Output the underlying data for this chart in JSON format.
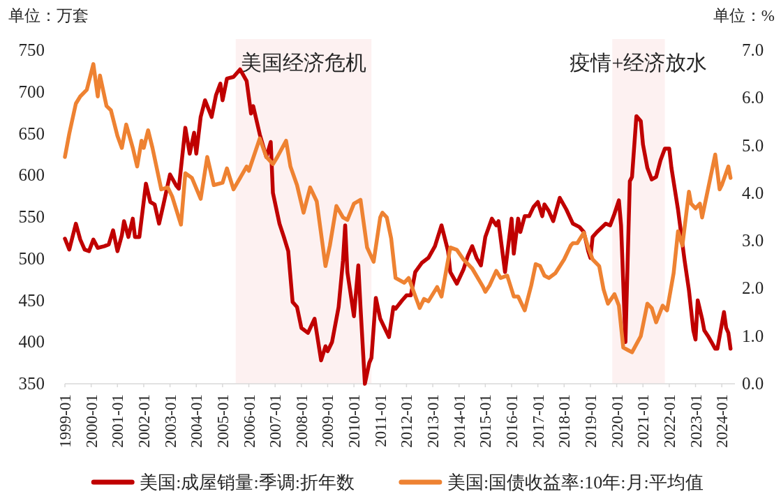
{
  "chart_data": {
    "type": "line",
    "ylabel": "单位：万套",
    "y2label": "单位：%",
    "xlim": [
      "1999-01",
      "2024-07"
    ],
    "xticks": [
      "1999-01",
      "2000-01",
      "2001-01",
      "2002-01",
      "2003-01",
      "2004-01",
      "2005-01",
      "2006-01",
      "2007-01",
      "2008-01",
      "2009-01",
      "2010-01",
      "2011-01",
      "2012-01",
      "2013-01",
      "2014-01",
      "2015-01",
      "2016-01",
      "2017-01",
      "2018-01",
      "2019-01",
      "2020-01",
      "2021-01",
      "2022-01",
      "2023-01",
      "2024-01"
    ],
    "ylim": [
      350,
      750
    ],
    "yticks": [
      350,
      400,
      450,
      500,
      550,
      600,
      650,
      700,
      750
    ],
    "y2lim": [
      0,
      7
    ],
    "y2ticks": [
      {
        "value": 0,
        "label": "0.0"
      },
      {
        "value": 1,
        "label": "1.0"
      },
      {
        "value": 2,
        "label": "2.0"
      },
      {
        "value": 3,
        "label": "3.0"
      },
      {
        "value": 4,
        "label": "4.0"
      },
      {
        "value": 5,
        "label": "5.0"
      },
      {
        "value": 6,
        "label": "6.0"
      },
      {
        "value": 7,
        "label": "7.0"
      }
    ],
    "legend": "bottom",
    "line_style": "solid",
    "bands": [
      {
        "axis": "x",
        "from": "2005-07",
        "to": "2010-09",
        "label": "美国经济危机",
        "color": "#fdf1f1"
      },
      {
        "axis": "x",
        "from": "2019-11",
        "to": "2021-11",
        "label": "疫情+经济放水",
        "color": "#fdf1f1"
      }
    ],
    "series": [
      {
        "name": "美国:成屋销量:季调:折年数",
        "color": "#c00000",
        "x": [
          "1999-01",
          "1999-03",
          "1999-06",
          "1999-08",
          "1999-10",
          "1999-12",
          "2000-02",
          "2000-04",
          "2000-07",
          "2000-09",
          "2000-11",
          "2001-01",
          "2001-03",
          "2001-04",
          "2001-06",
          "2001-08",
          "2001-09",
          "2001-11",
          "2002-02",
          "2002-04",
          "2002-06",
          "2002-08",
          "2002-10",
          "2003-01",
          "2003-04",
          "2003-05",
          "2003-08",
          "2003-10",
          "2003-12",
          "2004-01",
          "2004-03",
          "2004-05",
          "2004-08",
          "2004-10",
          "2004-12",
          "2005-01",
          "2005-03",
          "2005-06",
          "2005-09",
          "2005-12",
          "2006-02",
          "2006-03",
          "2006-06",
          "2006-09",
          "2006-11",
          "2006-12",
          "2007-03",
          "2007-05",
          "2007-07",
          "2007-09",
          "2007-11",
          "2008-01",
          "2008-04",
          "2008-07",
          "2008-10",
          "2008-12",
          "2009-01",
          "2009-03",
          "2009-06",
          "2009-08",
          "2009-09",
          "2009-10",
          "2010-01",
          "2010-03",
          "2010-04",
          "2010-06",
          "2010-08",
          "2010-09",
          "2010-11",
          "2011-01",
          "2011-05",
          "2011-07",
          "2011-08",
          "2011-11",
          "2012-01",
          "2012-03",
          "2012-05",
          "2012-08",
          "2012-11",
          "2013-02",
          "2013-05",
          "2013-08",
          "2013-09",
          "2013-12",
          "2014-03",
          "2014-05",
          "2014-07",
          "2014-09",
          "2014-11",
          "2015-01",
          "2015-04",
          "2015-06",
          "2015-07",
          "2015-10",
          "2016-01",
          "2016-02",
          "2016-04",
          "2016-05",
          "2016-07",
          "2016-09",
          "2016-11",
          "2017-01",
          "2017-03",
          "2017-04",
          "2017-06",
          "2017-08",
          "2017-11",
          "2018-02",
          "2018-05",
          "2018-08",
          "2018-10",
          "2018-12",
          "2019-01",
          "2019-02",
          "2019-04",
          "2019-06",
          "2019-08",
          "2019-10",
          "2019-12",
          "2020-02",
          "2020-03",
          "2020-05",
          "2020-07",
          "2020-08",
          "2020-10",
          "2020-12",
          "2021-01",
          "2021-03",
          "2021-05",
          "2021-07",
          "2021-09",
          "2021-11",
          "2022-01",
          "2022-02",
          "2022-05",
          "2022-08",
          "2022-10",
          "2022-12",
          "2023-01",
          "2023-02",
          "2023-04",
          "2023-05",
          "2023-07",
          "2023-10",
          "2023-11",
          "2024-02",
          "2024-03",
          "2024-04",
          "2024-05"
        ],
        "values": [
          524,
          511,
          542,
          523,
          511,
          509,
          523,
          513,
          515,
          517,
          534,
          509,
          528,
          545,
          526,
          548,
          526,
          526,
          590,
          568,
          565,
          542,
          565,
          601,
          587,
          584,
          657,
          626,
          651,
          626,
          670,
          690,
          670,
          696,
          710,
          690,
          716,
          718,
          727,
          713,
          674,
          683,
          649,
          622,
          640,
          579,
          542,
          526,
          509,
          448,
          442,
          417,
          411,
          428,
          378,
          395,
          389,
          400,
          442,
          498,
          540,
          484,
          431,
          492,
          442,
          350,
          375,
          381,
          453,
          428,
          406,
          442,
          440,
          450,
          456,
          456,
          484,
          495,
          501,
          515,
          540,
          509,
          484,
          470,
          487,
          503,
          515,
          501,
          492,
          526,
          548,
          540,
          545,
          484,
          548,
          506,
          548,
          532,
          551,
          551,
          562,
          568,
          551,
          565,
          557,
          545,
          573,
          559,
          542,
          538,
          532,
          509,
          501,
          526,
          532,
          537,
          542,
          540,
          554,
          570,
          540,
          400,
          593,
          598,
          671,
          665,
          637,
          609,
          595,
          598,
          618,
          632,
          632,
          609,
          559,
          498,
          462,
          414,
          403,
          450,
          428,
          414,
          406,
          392,
          392,
          436,
          417,
          411,
          392
        ]
      },
      {
        "name": "美国:国债收益率:10年:月:平均值",
        "color": "#ee8232",
        "axis": "y2",
        "x": [
          "1999-01",
          "1999-03",
          "1999-06",
          "1999-08",
          "1999-11",
          "2000-02",
          "2000-04",
          "2000-05",
          "2000-08",
          "2000-10",
          "2001-01",
          "2001-03",
          "2001-05",
          "2001-08",
          "2001-10",
          "2001-12",
          "2002-01",
          "2002-03",
          "2002-05",
          "2002-09",
          "2002-12",
          "2003-02",
          "2003-06",
          "2003-08",
          "2003-11",
          "2004-03",
          "2004-06",
          "2004-09",
          "2005-01",
          "2005-03",
          "2005-06",
          "2005-09",
          "2005-12",
          "2006-01",
          "2006-06",
          "2006-09",
          "2006-12",
          "2007-02",
          "2007-06",
          "2007-08",
          "2007-11",
          "2008-02",
          "2008-05",
          "2008-08",
          "2008-12",
          "2009-02",
          "2009-05",
          "2009-08",
          "2009-10",
          "2010-01",
          "2010-04",
          "2010-07",
          "2010-10",
          "2011-01",
          "2011-02",
          "2011-04",
          "2011-06",
          "2011-08",
          "2011-12",
          "2012-02",
          "2012-07",
          "2012-09",
          "2012-11",
          "2013-03",
          "2013-05",
          "2013-09",
          "2013-12",
          "2014-03",
          "2014-07",
          "2014-12",
          "2015-01",
          "2015-03",
          "2015-06",
          "2015-08",
          "2015-11",
          "2016-02",
          "2016-04",
          "2016-07",
          "2016-10",
          "2016-12",
          "2017-02",
          "2017-04",
          "2017-06",
          "2017-09",
          "2018-01",
          "2018-04",
          "2018-05",
          "2018-07",
          "2018-10",
          "2018-12",
          "2019-02",
          "2019-05",
          "2019-07",
          "2019-09",
          "2019-12",
          "2020-02",
          "2020-04",
          "2020-06",
          "2020-08",
          "2020-12",
          "2021-03",
          "2021-05",
          "2021-07",
          "2021-10",
          "2021-12",
          "2022-03",
          "2022-05",
          "2022-07",
          "2022-10",
          "2022-11",
          "2023-01",
          "2023-03",
          "2023-04",
          "2023-06",
          "2023-10",
          "2023-12",
          "2024-01",
          "2024-04",
          "2024-05"
        ],
        "values": [
          4.76,
          5.25,
          5.88,
          6.03,
          6.17,
          6.71,
          6.03,
          6.47,
          5.83,
          5.74,
          5.2,
          4.95,
          5.44,
          4.95,
          4.56,
          5.1,
          4.95,
          5.32,
          4.95,
          4.08,
          4.12,
          3.93,
          3.34,
          4.42,
          4.32,
          3.88,
          4.76,
          4.17,
          4.22,
          4.52,
          4.08,
          4.32,
          4.56,
          4.47,
          5.15,
          4.76,
          4.61,
          4.76,
          5.1,
          4.56,
          4.17,
          3.59,
          4.12,
          3.83,
          2.47,
          2.9,
          3.73,
          3.49,
          3.44,
          3.78,
          3.86,
          2.86,
          2.56,
          3.49,
          3.59,
          3.49,
          3.05,
          2.22,
          2.12,
          2.22,
          1.59,
          1.78,
          1.73,
          2.03,
          1.83,
          2.86,
          2.81,
          2.61,
          2.42,
          2.03,
          1.93,
          2.07,
          2.37,
          2.22,
          2.27,
          1.83,
          1.83,
          1.54,
          2.07,
          2.51,
          2.47,
          2.27,
          2.22,
          2.32,
          2.61,
          2.9,
          2.95,
          2.95,
          3.17,
          2.86,
          2.61,
          2.47,
          1.98,
          1.68,
          1.88,
          1.64,
          0.76,
          0.71,
          0.66,
          1.0,
          1.68,
          1.59,
          1.29,
          1.64,
          1.54,
          2.32,
          3.2,
          2.9,
          4.03,
          3.78,
          3.68,
          3.78,
          3.49,
          3.93,
          4.81,
          4.08,
          4.17,
          4.56,
          4.32
        ]
      }
    ]
  }
}
